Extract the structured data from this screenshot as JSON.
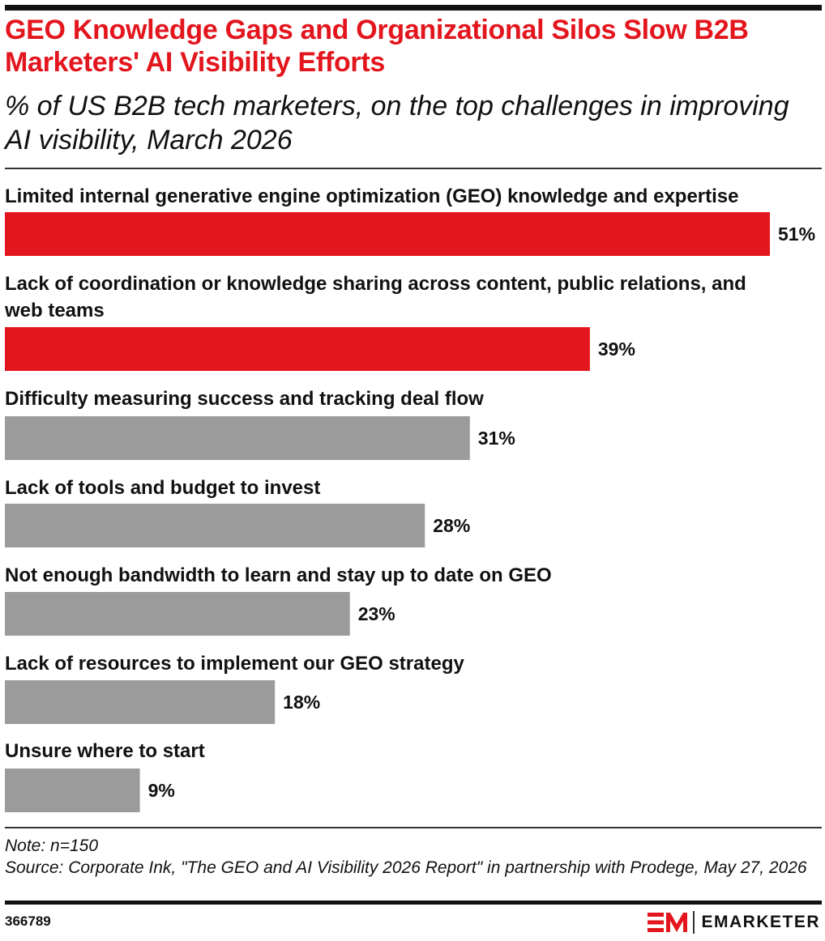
{
  "header": {
    "title": "GEO Knowledge Gaps and Organizational Silos Slow B2B Marketers' AI Visibility Efforts",
    "subtitle": "% of US B2B tech marketers, on the top challenges in improving AI visibility, March 2026"
  },
  "chart_data": {
    "type": "bar",
    "orientation": "horizontal",
    "title": "GEO Knowledge Gaps and Organizational Silos Slow B2B Marketers' AI Visibility Efforts",
    "subtitle": "% of US B2B tech marketers, on the top challenges in improving AI visibility, March 2026",
    "categories": [
      "Limited internal generative engine optimization (GEO) knowledge and expertise",
      "Lack of coordination or knowledge sharing across content, public relations, and web teams",
      "Difficulty measuring success and tracking deal flow",
      "Lack of tools and budget to invest",
      "Not enough bandwidth to learn and stay up to date on GEO",
      "Lack of resources to implement our GEO strategy",
      "Unsure where to start"
    ],
    "values": [
      51,
      39,
      31,
      28,
      23,
      18,
      9
    ],
    "value_labels": [
      "51%",
      "39%",
      "31%",
      "28%",
      "23%",
      "18%",
      "9%"
    ],
    "bar_colors": [
      "#e3151d",
      "#e3151d",
      "#9b9b9b",
      "#9b9b9b",
      "#9b9b9b",
      "#9b9b9b",
      "#9b9b9b"
    ],
    "unit": "%",
    "xlim": [
      0,
      51
    ],
    "grid": false,
    "legend": "none"
  },
  "footer": {
    "note": "Note: n=150",
    "source": "Source: Corporate Ink, \"The GEO and AI Visibility 2026 Report\" in partnership with Prodege, May 27, 2026",
    "chart_id": "366789",
    "brand": "EMARKETER"
  },
  "colors": {
    "accent": "#e3151d",
    "neutral_bar": "#9b9b9b",
    "text": "#111111"
  }
}
